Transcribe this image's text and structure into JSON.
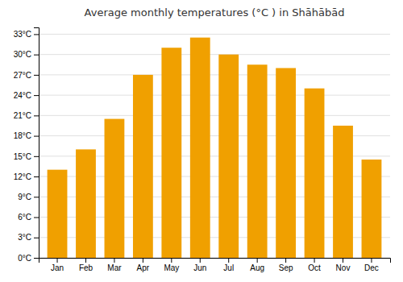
{
  "chart_data": {
    "type": "bar",
    "title": "Average monthly temperatures (°C ) in Shāhābād",
    "categories": [
      "Jan",
      "Feb",
      "Mar",
      "Apr",
      "May",
      "Jun",
      "Jul",
      "Aug",
      "Sep",
      "Oct",
      "Nov",
      "Dec"
    ],
    "values": [
      13.0,
      16.0,
      20.5,
      27.0,
      31.0,
      32.5,
      30.0,
      28.5,
      28.0,
      25.0,
      19.5,
      14.5
    ],
    "color": "#F0A000",
    "ylim": [
      0,
      34
    ],
    "yticks": [
      {
        "value": 0,
        "label": "0°C"
      },
      {
        "value": 3,
        "label": "3°C"
      },
      {
        "value": 6,
        "label": "6°C"
      },
      {
        "value": 9,
        "label": "9°C"
      },
      {
        "value": 12,
        "label": "12°C"
      },
      {
        "value": 15,
        "label": "15°C"
      },
      {
        "value": 18,
        "label": "18°C"
      },
      {
        "value": 21,
        "label": "21°C"
      },
      {
        "value": 24,
        "label": "24°C"
      },
      {
        "value": 27,
        "label": "27°C"
      },
      {
        "value": 30,
        "label": "30°C"
      },
      {
        "value": 33,
        "label": "33°C"
      }
    ],
    "grid": true
  }
}
